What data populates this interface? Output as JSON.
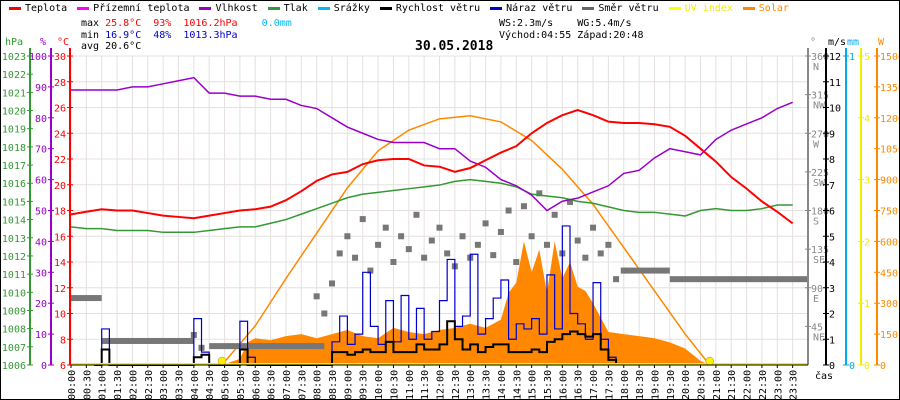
{
  "legend": [
    {
      "label": "Teplota",
      "color": "#ff0000"
    },
    {
      "label": "Přízemní teplota",
      "color": "#ff00ff"
    },
    {
      "label": "Vlhkost",
      "color": "#9900cc"
    },
    {
      "label": "Tlak",
      "color": "#339933"
    },
    {
      "label": "Srážky",
      "color": "#00bbff"
    },
    {
      "label": "Rychlost větru",
      "color": "#000000"
    },
    {
      "label": "Náraz větru",
      "color": "#0000cc"
    },
    {
      "label": "Směr větru",
      "color": "#666666"
    },
    {
      "label": "UV index",
      "color": "#ffff00"
    },
    {
      "label": "Solar",
      "color": "#ff8800"
    }
  ],
  "stats": {
    "max_label": "max",
    "max_temp": "25.8°C",
    "max_hum": "93%",
    "max_press": "1016.2hPa",
    "max_rain": "0.0mm",
    "min_label": "min",
    "min_temp": "16.9°C",
    "min_hum": "48%",
    "min_press": "1013.3hPa",
    "avg_label": "avg",
    "avg_temp": "20.6°C",
    "ws": "WS:2.3m/s",
    "wg": "WG:5.4m/s",
    "sunrise": "Východ:04:55",
    "sunset": "Západ:20:48"
  },
  "chart_data": {
    "type": "line",
    "title": "30.05.2018",
    "xlabel": "čas",
    "x_ticks": [
      "00:00",
      "00:30",
      "01:00",
      "01:30",
      "02:00",
      "02:30",
      "03:00",
      "03:30",
      "04:00",
      "04:30",
      "05:00",
      "05:30",
      "06:00",
      "06:30",
      "07:00",
      "07:30",
      "08:00",
      "08:30",
      "09:00",
      "09:30",
      "10:00",
      "10:30",
      "11:00",
      "11:30",
      "12:00",
      "12:30",
      "13:00",
      "13:30",
      "14:00",
      "14:30",
      "15:00",
      "15:30",
      "16:00",
      "16:30",
      "17:00",
      "17:30",
      "18:00",
      "18:30",
      "19:00",
      "19:30",
      "20:00",
      "20:30",
      "21:00",
      "21:30",
      "22:00",
      "22:30",
      "23:00",
      "23:30"
    ],
    "axes": {
      "pressure": {
        "unit": "hPa",
        "range": [
          1006,
          1023
        ],
        "ticks": [
          1006,
          1007,
          1008,
          1009,
          1010,
          1011,
          1012,
          1013,
          1014,
          1015,
          1016,
          1017,
          1018,
          1019,
          1020,
          1021,
          1022,
          1023
        ]
      },
      "humidity": {
        "unit": "%",
        "range": [
          0,
          100
        ],
        "ticks": [
          0,
          10,
          20,
          30,
          40,
          50,
          60,
          70,
          80,
          90,
          100
        ]
      },
      "temperature": {
        "unit": "°C",
        "range": [
          6,
          30
        ],
        "ticks": [
          6,
          8,
          10,
          12,
          14,
          16,
          18,
          20,
          22,
          24,
          26,
          28,
          30
        ]
      },
      "direction": {
        "unit": "°",
        "range": [
          0,
          360
        ],
        "ticks": [
          {
            "v": 45,
            "l": "NE"
          },
          {
            "v": 90,
            "l": "E"
          },
          {
            "v": 135,
            "l": "SE"
          },
          {
            "v": 180,
            "l": "S"
          },
          {
            "v": 225,
            "l": "SW"
          },
          {
            "v": 270,
            "l": "W"
          },
          {
            "v": 315,
            "l": "NW"
          },
          {
            "v": 360,
            "l": "N"
          }
        ]
      },
      "wind": {
        "unit": "m/s",
        "range": [
          0,
          12
        ],
        "ticks": [
          0,
          1,
          2,
          3,
          4,
          5,
          6,
          7,
          8,
          9,
          10,
          11,
          12
        ]
      },
      "rain": {
        "unit": "mm",
        "range": [
          0,
          1
        ],
        "ticks": [
          0,
          1
        ]
      },
      "uv": {
        "unit": "",
        "range": [
          0,
          5
        ],
        "ticks": [
          0,
          1,
          2,
          3,
          4,
          5
        ]
      },
      "solar": {
        "unit": "W",
        "range": [
          0,
          1500
        ],
        "ticks": [
          0,
          150,
          300,
          450,
          600,
          750,
          900,
          1050,
          1200,
          1350,
          1500
        ]
      }
    },
    "series": {
      "temperature": [
        17.7,
        17.9,
        18.1,
        18.0,
        18.0,
        17.8,
        17.6,
        17.5,
        17.4,
        17.6,
        17.8,
        18.0,
        18.1,
        18.3,
        18.8,
        19.5,
        20.3,
        20.8,
        21.0,
        21.6,
        21.9,
        22.0,
        22.0,
        21.5,
        21.4,
        21.0,
        21.3,
        21.9,
        22.5,
        23.0,
        24.0,
        24.8,
        25.4,
        25.8,
        25.4,
        24.9,
        24.8,
        24.8,
        24.7,
        24.5,
        23.8,
        22.8,
        21.8,
        20.6,
        19.7,
        18.7,
        17.9,
        17.0
      ],
      "humidity": [
        89,
        89,
        89,
        89,
        90,
        90,
        91,
        92,
        93,
        88,
        88,
        87,
        87,
        86,
        86,
        84,
        83,
        80,
        77,
        75,
        73,
        72,
        72,
        72,
        70,
        70,
        66,
        64,
        60,
        58,
        55,
        50,
        53,
        54,
        56,
        58,
        62,
        63,
        67,
        70,
        69,
        68,
        73,
        76,
        78,
        80,
        83,
        85
      ],
      "pressure": [
        1013.6,
        1013.5,
        1013.5,
        1013.4,
        1013.4,
        1013.4,
        1013.3,
        1013.3,
        1013.3,
        1013.4,
        1013.5,
        1013.6,
        1013.6,
        1013.8,
        1014.0,
        1014.3,
        1014.6,
        1014.9,
        1015.2,
        1015.4,
        1015.5,
        1015.6,
        1015.7,
        1015.8,
        1015.9,
        1016.1,
        1016.2,
        1016.1,
        1016.0,
        1015.8,
        1015.4,
        1015.3,
        1015.2,
        1015.0,
        1014.9,
        1014.7,
        1014.5,
        1014.4,
        1014.4,
        1014.3,
        1014.2,
        1014.5,
        1014.6,
        1014.5,
        1014.5,
        1014.6,
        1014.8,
        1014.8
      ],
      "wind_speed": [
        [
          "00:45",
          0
        ],
        [
          "01:00",
          0.6
        ],
        [
          "01:15",
          0
        ],
        [
          "03:45",
          0
        ],
        [
          "04:00",
          0.3
        ],
        [
          "04:15",
          0.4
        ],
        [
          "04:30",
          0
        ],
        [
          "05:15",
          0
        ],
        [
          "05:30",
          0.6
        ],
        [
          "05:45",
          0
        ],
        [
          "08:15",
          0
        ],
        [
          "08:30",
          0.5
        ],
        [
          "08:45",
          0.5
        ],
        [
          "09:00",
          0.4
        ],
        [
          "09:15",
          0.5
        ],
        [
          "09:30",
          0.6
        ],
        [
          "09:45",
          0.5
        ],
        [
          "10:00",
          0.5
        ],
        [
          "10:15",
          0.9
        ],
        [
          "10:30",
          0.5
        ],
        [
          "10:45",
          0.5
        ],
        [
          "11:00",
          0.5
        ],
        [
          "11:15",
          0.8
        ],
        [
          "11:30",
          0.6
        ],
        [
          "11:45",
          0.6
        ],
        [
          "12:00",
          0.8
        ],
        [
          "12:15",
          1.7
        ],
        [
          "12:30",
          1.0
        ],
        [
          "12:45",
          0.6
        ],
        [
          "13:00",
          0.8
        ],
        [
          "13:15",
          0.5
        ],
        [
          "13:30",
          0.7
        ],
        [
          "13:45",
          0.8
        ],
        [
          "14:00",
          0.8
        ],
        [
          "14:15",
          0.5
        ],
        [
          "14:30",
          0.5
        ],
        [
          "14:45",
          0.5
        ],
        [
          "15:00",
          0.6
        ],
        [
          "15:15",
          0.5
        ],
        [
          "15:30",
          0.9
        ],
        [
          "15:45",
          1.0
        ],
        [
          "16:00",
          1.2
        ],
        [
          "16:15",
          1.3
        ],
        [
          "16:30",
          1.2
        ],
        [
          "16:45",
          1.1
        ],
        [
          "17:00",
          1.2
        ],
        [
          "17:15",
          0.6
        ],
        [
          "17:30",
          0.2
        ],
        [
          "17:45",
          0
        ]
      ],
      "wind_gust": [
        [
          "00:45",
          0
        ],
        [
          "01:00",
          1.4
        ],
        [
          "01:15",
          0
        ],
        [
          "03:45",
          0
        ],
        [
          "04:00",
          1.8
        ],
        [
          "04:15",
          0.5
        ],
        [
          "04:30",
          0
        ],
        [
          "05:15",
          0
        ],
        [
          "05:30",
          1.7
        ],
        [
          "05:45",
          0.3
        ],
        [
          "06:00",
          0
        ],
        [
          "08:15",
          0
        ],
        [
          "08:30",
          0.9
        ],
        [
          "08:45",
          1.9
        ],
        [
          "09:00",
          0.8
        ],
        [
          "09:15",
          1.2
        ],
        [
          "09:30",
          3.6
        ],
        [
          "09:45",
          1.5
        ],
        [
          "10:00",
          0.8
        ],
        [
          "10:15",
          2.5
        ],
        [
          "10:30",
          0.9
        ],
        [
          "10:45",
          2.7
        ],
        [
          "11:00",
          1.0
        ],
        [
          "11:15",
          2.2
        ],
        [
          "11:30",
          1.0
        ],
        [
          "11:45",
          1.3
        ],
        [
          "12:00",
          2.5
        ],
        [
          "12:15",
          4.1
        ],
        [
          "12:30",
          1.5
        ],
        [
          "12:45",
          1.9
        ],
        [
          "13:00",
          4.3
        ],
        [
          "13:15",
          1.2
        ],
        [
          "13:30",
          1.8
        ],
        [
          "13:45",
          2.6
        ],
        [
          "14:00",
          3.3
        ],
        [
          "14:15",
          1.0
        ],
        [
          "14:30",
          1.6
        ],
        [
          "14:45",
          1.4
        ],
        [
          "15:00",
          1.8
        ],
        [
          "15:15",
          1.2
        ],
        [
          "15:30",
          3.5
        ],
        [
          "15:45",
          1.4
        ],
        [
          "16:00",
          5.4
        ],
        [
          "16:15",
          2.0
        ],
        [
          "16:30",
          1.6
        ],
        [
          "16:45",
          1.0
        ],
        [
          "17:00",
          3.2
        ],
        [
          "17:15",
          1.0
        ],
        [
          "17:30",
          0.3
        ],
        [
          "17:45",
          0
        ]
      ],
      "wind_dir_segments": [
        [
          "00:00",
          "01:00",
          78
        ],
        [
          "01:00",
          "04:00",
          28
        ],
        [
          "04:30",
          "08:15",
          22
        ],
        [
          "18:00",
          "19:30",
          110
        ],
        [
          "19:30",
          "24:00",
          100
        ]
      ],
      "wind_dir_points": [
        [
          "04:00",
          35
        ],
        [
          "04:15",
          20
        ],
        [
          "08:00",
          80
        ],
        [
          "08:15",
          60
        ],
        [
          "08:30",
          95
        ],
        [
          "08:45",
          130
        ],
        [
          "09:00",
          150
        ],
        [
          "09:15",
          125
        ],
        [
          "09:30",
          170
        ],
        [
          "09:45",
          110
        ],
        [
          "10:00",
          140
        ],
        [
          "10:15",
          160
        ],
        [
          "10:30",
          120
        ],
        [
          "10:45",
          150
        ],
        [
          "11:00",
          135
        ],
        [
          "11:15",
          175
        ],
        [
          "11:30",
          125
        ],
        [
          "11:45",
          145
        ],
        [
          "12:00",
          160
        ],
        [
          "12:15",
          130
        ],
        [
          "12:30",
          115
        ],
        [
          "12:45",
          150
        ],
        [
          "13:00",
          125
        ],
        [
          "13:15",
          140
        ],
        [
          "13:30",
          165
        ],
        [
          "13:45",
          128
        ],
        [
          "14:00",
          155
        ],
        [
          "14:15",
          180
        ],
        [
          "14:30",
          120
        ],
        [
          "14:45",
          185
        ],
        [
          "15:00",
          150
        ],
        [
          "15:15",
          200
        ],
        [
          "15:30",
          140
        ],
        [
          "15:45",
          175
        ],
        [
          "16:00",
          130
        ],
        [
          "16:15",
          190
        ],
        [
          "16:30",
          145
        ],
        [
          "16:45",
          125
        ],
        [
          "17:00",
          160
        ],
        [
          "17:15",
          130
        ],
        [
          "17:30",
          140
        ],
        [
          "17:45",
          100
        ],
        [
          "18:00",
          110
        ]
      ],
      "solar": [
        [
          "04:55",
          0
        ],
        [
          "05:30",
          30
        ],
        [
          "05:45",
          110
        ],
        [
          "06:00",
          130
        ],
        [
          "06:30",
          120
        ],
        [
          "07:00",
          140
        ],
        [
          "07:30",
          150
        ],
        [
          "08:00",
          130
        ],
        [
          "08:30",
          150
        ],
        [
          "09:00",
          170
        ],
        [
          "09:30",
          140
        ],
        [
          "10:00",
          130
        ],
        [
          "10:30",
          180
        ],
        [
          "11:00",
          160
        ],
        [
          "11:30",
          150
        ],
        [
          "12:00",
          170
        ],
        [
          "12:30",
          180
        ],
        [
          "13:00",
          200
        ],
        [
          "13:30",
          180
        ],
        [
          "14:00",
          220
        ],
        [
          "14:15",
          350
        ],
        [
          "14:30",
          400
        ],
        [
          "14:45",
          600
        ],
        [
          "15:00",
          450
        ],
        [
          "15:15",
          560
        ],
        [
          "15:30",
          350
        ],
        [
          "15:45",
          600
        ],
        [
          "16:00",
          420
        ],
        [
          "16:15",
          500
        ],
        [
          "16:30",
          380
        ],
        [
          "16:45",
          360
        ],
        [
          "17:00",
          300
        ],
        [
          "17:30",
          160
        ],
        [
          "18:00",
          150
        ],
        [
          "18:30",
          140
        ],
        [
          "19:00",
          130
        ],
        [
          "19:30",
          110
        ],
        [
          "20:00",
          80
        ],
        [
          "20:30",
          20
        ],
        [
          "20:48",
          0
        ]
      ],
      "solar_theoretical": [
        [
          "04:55",
          0
        ],
        [
          "06:00",
          190
        ],
        [
          "07:00",
          420
        ],
        [
          "08:00",
          640
        ],
        [
          "09:00",
          860
        ],
        [
          "10:00",
          1040
        ],
        [
          "11:00",
          1140
        ],
        [
          "12:00",
          1195
        ],
        [
          "13:00",
          1210
        ],
        [
          "14:00",
          1180
        ],
        [
          "15:00",
          1090
        ],
        [
          "16:00",
          950
        ],
        [
          "17:00",
          780
        ],
        [
          "18:00",
          570
        ],
        [
          "19:00",
          360
        ],
        [
          "20:00",
          150
        ],
        [
          "20:48",
          0
        ]
      ],
      "uv": 0,
      "rain": 0,
      "sun_markers": [
        "04:55",
        "20:48"
      ]
    }
  }
}
